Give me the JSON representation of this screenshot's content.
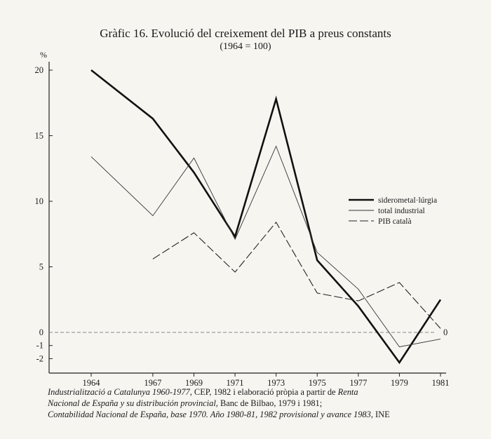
{
  "chart_data": {
    "type": "line",
    "title": "Gràfic 16. Evolució del creixement del PIB a preus constants",
    "subtitle": "(1964 = 100)",
    "ylabel": "%",
    "x": [
      1964,
      1967,
      1969,
      1971,
      1973,
      1975,
      1977,
      1979,
      1981
    ],
    "xlim": [
      1964,
      1981
    ],
    "ylim": [
      -3,
      20
    ],
    "yticks": [
      20,
      15,
      10,
      5,
      0,
      -1,
      -2
    ],
    "ytick_labels": [
      "20",
      "15",
      "10",
      "5",
      "0",
      "-1",
      "-2"
    ],
    "xtick_labels": [
      "1964",
      "1967",
      "1969",
      "1971",
      "1973",
      "1975",
      "1977",
      "1979",
      "1981"
    ],
    "zero_label": "0",
    "grid": false,
    "legend_position": "right",
    "series": [
      {
        "name": "siderometal·lúrgia",
        "style": "thick",
        "points": [
          [
            1964,
            20.0
          ],
          [
            1967,
            16.3
          ],
          [
            1969,
            12.2
          ],
          [
            1971,
            7.3
          ],
          [
            1973,
            17.8
          ],
          [
            1975,
            5.5
          ],
          [
            1977,
            2.0
          ],
          [
            1979,
            -2.3
          ],
          [
            1981,
            2.5
          ]
        ]
      },
      {
        "name": "total industrial",
        "style": "thin",
        "points": [
          [
            1964,
            13.4
          ],
          [
            1967,
            8.9
          ],
          [
            1969,
            13.3
          ],
          [
            1971,
            7.1
          ],
          [
            1973,
            14.2
          ],
          [
            1975,
            6.1
          ],
          [
            1977,
            3.3
          ],
          [
            1979,
            -1.1
          ],
          [
            1981,
            -0.5
          ]
        ]
      },
      {
        "name": "PIB català",
        "style": "dashed",
        "points": [
          [
            1967,
            5.6
          ],
          [
            1969,
            7.6
          ],
          [
            1971,
            4.6
          ],
          [
            1973,
            8.4
          ],
          [
            1975,
            3.0
          ],
          [
            1977,
            2.4
          ],
          [
            1979,
            3.8
          ],
          [
            1981,
            0.3
          ]
        ]
      }
    ]
  },
  "source": {
    "l1_italic": "Industrialització a Catalunya 1960-1977",
    "l1_plain": ", CEP, 1982 i elaboració pròpia a partir de ",
    "l1_italic2": "Renta",
    "l2_italic": "Nacional de España y su distribución provincial",
    "l2_plain": ", Banc de Bilbao, 1979 i 1981;",
    "l3_italic": "Contabilidad Nacional de España, base 1970. Año 1980-81, 1982 provisional y avance 1983,",
    "l3_plain": " INE"
  }
}
